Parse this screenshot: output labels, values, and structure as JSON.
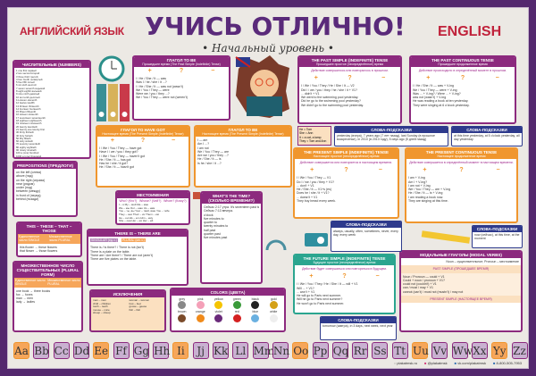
{
  "header": {
    "left": "АНГЛИЙСКИЙ ЯЗЫК",
    "title": "УЧИСЬ ОТЛИЧНО!",
    "subtitle": "• Начальный уровень •",
    "right": "ENGLISH"
  },
  "panels": {
    "numbers": {
      "title": "ЧИСЛИТЕЛЬНЫЕ (NUMBERS)",
      "rows": [
        "1 one first первый",
        "2 two second второй",
        "3 three third третий",
        "4 four fourth четвёртый",
        "5 five fifth пятый",
        "6 six sixth шестой",
        "7 seven seventh седьмой",
        "8 eight eighth восьмой",
        "9 nine ninth девятый",
        "10 ten tenth десятый",
        "11 eleven eleventh",
        "12 twelve twelfth",
        "13 thirteen thirteenth",
        "14 fourteen fourteenth",
        "15 fifteen fifteenth",
        "16 sixteen sixteenth",
        "17 seventeen seventeenth",
        "18 eighteen eighteenth",
        "19 nineteen nineteenth",
        "20 twenty twentieth",
        "21 twenty-one twenty-first",
        "30 thirty thirtieth",
        "40 forty fortieth",
        "50 fifty fiftieth",
        "60 sixty sixtieth",
        "70 seventy seventieth",
        "80 eighty eightieth",
        "90 ninety ninetieth",
        "100 a (one) hundred",
        "1000 a (one) thousand"
      ]
    },
    "tobe_past": {
      "title": "ГЛАГОЛ TO BE",
      "subtitle": "Прошедшее время (The Past Simple (Indefinite) Tense)",
      "rows": [
        "I / He / She / It — was",
        "Was I / he / she / it ...?",
        "I / He / She / It — was not (wasn't)",
        "We / You / They — were",
        "Were we / you / they ...?",
        "We / You / They — were not (weren't)"
      ]
    },
    "past_simple": {
      "title": "THE PAST SIMPLE (INDEFINITE) TENSE",
      "subtitle": "Прошедшее простое (неопределённое) время",
      "desc": "Действие совершилось или повторялось в прошлом.",
      "rows": [
        "I / We / You / They / He / She / It — V2",
        "Did I / we / you / they / he / she / it + V1?",
        "... didn't + V1",
        "We went to the swimming pool yesterday.",
        "Did he go to the swimming pool yesterday?",
        "We didn't go to the swimming pool yesterday."
      ]
    },
    "past_cont": {
      "title": "THE PAST CONTINUOUS TENSE",
      "subtitle": "Прошедшее продолженное время",
      "desc": "Действие происходило в определённый момент в прошлом.",
      "rows": [
        "I / He / She / It — was + V-ing",
        "We / You / They — were + V-ing",
        "Was ... + V-ing? / Were ... + V-ing?",
        "was not (wasn't) + V-ing",
        "He was reading a book at ten yesterday.",
        "They were singing at 6 o'clock yesterday."
      ]
    },
    "have_got": {
      "title": "ГЛАГОЛ TO HAVE GOT",
      "subtitle": "Настоящее время (The Present Simple (Indefinite) Tense)",
      "rows": [
        "I / We / You / They — have got",
        "Have I / we / you / they got?",
        "I / We / You / They — haven't got",
        "He / She / It — has got",
        "Has he / she / it got?",
        "He / She / It — hasn't got"
      ]
    },
    "tobe_present": {
      "title": "ГЛАГОЛ TO BE",
      "subtitle": "Настоящее время (The Present Simple (Indefinite) Tense)",
      "rows": [
        "I — am",
        "Am I ...?",
        "I am not",
        "We / You / They — are",
        "Are we / you / they ...?",
        "He / She / It — is",
        "Is he / she / it ...?"
      ]
    },
    "prepositions": {
      "title": "PREPOSITIONS (ПРЕДЛОГИ)",
      "rows": [
        "on the left (слева)",
        "above (над)",
        "on the right (справа)",
        "near (рядом)",
        "under (под)",
        "between (между)",
        "in front of (перед)",
        "behind (позади)"
      ]
    },
    "pronouns": {
      "title": "МЕСТОИМЕНИЯ",
      "cols": [
        "Who? (Кто?)",
        "Whose? (Чей?)",
        "Whom? (Кому?)"
      ],
      "rows": [
        "I – я   My – мой   Me – мне",
        "We – мы   Our – наш   Us – нам",
        "You – ты, вы   Your – твой, ваш   You – тебе",
        "They – они   Their – их   Them – им",
        "He – он   His – его   Him – ему",
        "She – она   Her – её   Her – ей",
        "It – оно   Its – его   It – ему"
      ]
    },
    "this_these": {
      "title": "THIS – THESE – THAT – THOSE",
      "cols": [
        "Единственное число SINGLE",
        "Множественное число PLURAL"
      ],
      "rows": [
        "this flower → these flowers",
        "that flower → those flowers"
      ]
    },
    "there_is": {
      "title": "THERE IS – THERE ARE",
      "labels": [
        "SINGULAR (ед.ч.)",
        "PLURAL (мн.ч.)"
      ],
      "rows": [
        "There is / Is there? / There is not (isn't)",
        "There is a plate on the table.",
        "There are / Are there? / There are not (aren't)",
        "There are five plates on the table."
      ]
    },
    "plural": {
      "title": "МНОЖЕСТВЕННОЕ ЧИСЛО СУЩЕСТВИТЕЛЬНЫХ (PLURAL FORM)",
      "cols": [
        "Единственное число SINGLE",
        "Множественное число PLURAL"
      ],
      "rows": [
        "one book → three books",
        "fox → foxes",
        "man → men",
        "lady → ladies"
      ]
    },
    "time": {
      "title": "WHAT'S THE TIME? (СКОЛЬКО ВРЕМЕНИ?)",
      "rows": [
        "Сейчас 2:17 утра. It's seventeen past two a.m.",
        "Сейчас 7:13 вечера.",
        "o'clock",
        "five minutes to",
        "quarter to",
        "twenty minutes to",
        "half past",
        "quarter past",
        "five minutes past"
      ]
    },
    "colors": {
      "title": "COLORS (ЦВЕТА)",
      "items": [
        "grey",
        "pink",
        "yellow",
        "green",
        "black",
        "gold",
        "brown",
        "orange",
        "violet",
        "red",
        "blue",
        "white"
      ]
    },
    "exceptions": {
      "title": "ИСКЛЮЧЕНИЯ",
      "rows": [
        "man – men",
        "woman – women",
        "child – children",
        "foot – feet",
        "tooth – teeth",
        "goose – geese",
        "mouse – mice",
        "fish – fish",
        "sheep – sheep"
      ]
    },
    "present_simple": {
      "title": "THE PRESENT SIMPLE (INDEFINITE) TENSE",
      "subtitle": "Настоящее простое (неопределённое) время",
      "desc": "Действие совершается или повторяется в настоящем времени.",
      "rows": [
        "I / We / You / They — V1",
        "Do I / we / you / they + V1?",
        "... don't + V1",
        "He / She / It — V1+s (es)",
        "Does he / she / it + V1?",
        "... doesn't + V1",
        "They buy bread every week."
      ]
    },
    "present_cont": {
      "title": "THE PRESENT CONTINUOUS TENSE",
      "subtitle": "Настоящее продолженное время",
      "desc": "Действие совершается в определённый момент в настоящем времени.",
      "rows": [
        "I am + V-ing",
        "Am I + V-ing?",
        "I am not + V-ing",
        "We / You / They — are + V-ing",
        "He / She / It — is + V-ing",
        "I am reading a book now.",
        "They are singing at this time."
      ]
    },
    "future_simple": {
      "title": "THE FUTURE SIMPLE (INDEFINITE) TENSE",
      "subtitle": "Будущее простое (неопределённое) время",
      "desc": "Действие будет совершаться или повторяться в будущем.",
      "rows": [
        "I / We / You / They / He / She / It — will + V1",
        "Will ... + V1?",
        "... won't + V1",
        "He will go to Paris next summer.",
        "Will he go to Paris next summer?",
        "He won't go to Paris next summer."
      ]
    },
    "modal": {
      "title": "МОДАЛЬНЫЕ ГЛАГОЛЫ (MODAL VERBS)",
      "sections": [
        "PAST SIMPLE (ПРОШЕДШЕЕ ВРЕМЯ)",
        "PRESENT SIMPLE (НАСТОЯЩЕЕ ВРЕМЯ)"
      ],
      "legend": [
        "Noun – существительное",
        "Pronoun – местоимение"
      ],
      "rows": [
        "Noun / Pronoun — could + V1",
        "Could + noun / pronoun + V1?",
        "could not (couldn't) + V1",
        "can / must / may + V1",
        "cannot (can't) / must not (mustn't) / may not"
      ]
    }
  },
  "tips": {
    "title": "СЛОВА-ПОДСКАЗКИ",
    "past_simple": "yesterday (вчера), 7 years ago (7 лет назад), last Sunday (в прошлое воскресенье), in 2010 (в 2010 году), 5 days ago (5 дней назад)",
    "past_cont": "at this time yesterday, at 5 o'clock yesterday, all day yesterday",
    "present_simple": "always, usually, often, sometimes, never, every day, every week",
    "present_cont": "now (сейчас), at this time, at the moment",
    "future": "tomorrow (завтра), in 3 days, next week, next year",
    "pronouns": [
      "He = Tom",
      "She = Ann",
      "It = a cat, a lamp",
      "They = Tom and Ann"
    ]
  },
  "alphabet": [
    {
      "l": "Aa",
      "v": true
    },
    {
      "l": "Bb"
    },
    {
      "l": "Cc"
    },
    {
      "l": "Dd"
    },
    {
      "l": "Ee",
      "v": true
    },
    {
      "l": "Ff"
    },
    {
      "l": "Gg"
    },
    {
      "l": "Hh"
    },
    {
      "l": "Ii",
      "v": true
    },
    {
      "l": "Jj"
    },
    {
      "l": "Kk"
    },
    {
      "l": "Ll"
    },
    {
      "l": "Mm"
    },
    {
      "l": "Nn"
    },
    {
      "l": "Oo",
      "v": true
    },
    {
      "l": "Pp"
    },
    {
      "l": "Qq"
    },
    {
      "l": "Rr"
    },
    {
      "l": "Ss"
    },
    {
      "l": "Tt"
    },
    {
      "l": "Uu",
      "v": true
    },
    {
      "l": "Vv"
    },
    {
      "l": "Ww"
    },
    {
      "l": "Xx"
    },
    {
      "l": "Yy",
      "v": true
    },
    {
      "l": "Zz"
    }
  ],
  "footer": {
    "site": "plakatmsk.ru",
    "instagram": "@plakatmsk",
    "vk": "vk.com/plakatmsk",
    "phone": "8-800-505-7953"
  },
  "colors": {
    "frame": "#54286e",
    "purple": "#8c2a7e",
    "orange": "#f0962e",
    "teal": "#2ba58f",
    "navy": "#2e3a8c",
    "red": "#c0223b",
    "background": "#ece9e4"
  }
}
